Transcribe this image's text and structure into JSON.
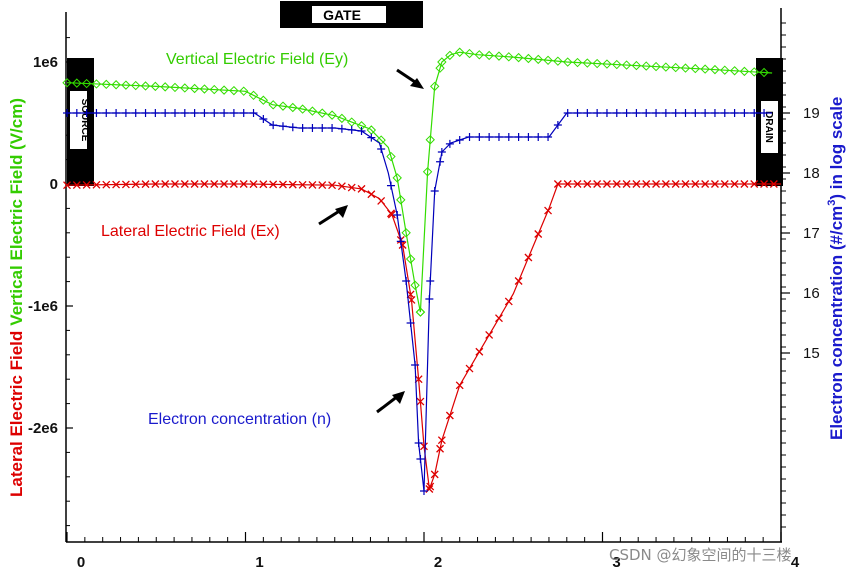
{
  "chart_data": {
    "type": "line",
    "x_ticks": [
      "0",
      "1",
      "2",
      "3",
      "4"
    ],
    "x_values": [
      0,
      1,
      2,
      3,
      4
    ],
    "xlim": [
      0,
      4
    ],
    "left_axis": {
      "ylabel_red": "Lateral Electric Field",
      "ylabel_green": "Vertical Electric Field (V/cm)",
      "tick_labels": [
        "1e6",
        "0",
        "-1e6",
        "-2e6"
      ],
      "tick_values": [
        1000000,
        0,
        -1000000,
        -2000000
      ],
      "ylim": [
        -2800000,
        1400000
      ]
    },
    "right_axis": {
      "ylabel_main": "Electron concentration (#/cm",
      "ylabel_sup": "3",
      "ylabel_tail": ") in log scale",
      "tick_labels": [
        "19",
        "18",
        "17",
        "16",
        "15"
      ],
      "tick_values": [
        19,
        18,
        17,
        16,
        15
      ]
    },
    "boxes": {
      "gate": "GATE",
      "source": "SOURCE",
      "drain": "DRAIN"
    },
    "annotations": {
      "ey": "Vertical Electric Field (Ey)",
      "ex": "Lateral Electric Field (Ex)",
      "n": "Electron concentration (n)"
    },
    "series": [
      {
        "name": "Vertical Electric Field (Ey)",
        "color": "#33dd00",
        "marker": "diamond",
        "x": [
          0,
          0.5,
          1.0,
          1.15,
          1.3,
          1.5,
          1.7,
          1.8,
          1.85,
          1.9,
          1.95,
          1.98,
          2.02,
          2.06,
          2.1,
          2.15,
          2.2,
          2.3,
          2.5,
          2.8,
          3.2,
          3.6,
          3.95
        ],
        "y": [
          830000,
          800000,
          760000,
          650000,
          620000,
          560000,
          450000,
          300000,
          50000,
          -400000,
          -830000,
          -1050000,
          100000,
          800000,
          1000000,
          1060000,
          1080000,
          1060000,
          1040000,
          1000000,
          970000,
          940000,
          910000
        ]
      },
      {
        "name": "Lateral Electric Field (Ex)",
        "color": "#dd0000",
        "marker": "x",
        "x": [
          0,
          0.5,
          1.0,
          1.5,
          1.65,
          1.75,
          1.82,
          1.88,
          1.93,
          1.97,
          2.0,
          2.03,
          2.06,
          2.1,
          2.2,
          2.3,
          2.4,
          2.5,
          2.6,
          2.7,
          2.75,
          3.0,
          3.5,
          4.0
        ],
        "y": [
          -10000,
          0,
          0,
          -10000,
          -40000,
          -120000,
          -250000,
          -500000,
          -950000,
          -1600000,
          -2150000,
          -2500000,
          -2380000,
          -2100000,
          -1650000,
          -1400000,
          -1150000,
          -900000,
          -550000,
          -200000,
          0,
          0,
          0,
          0
        ]
      },
      {
        "name": "Electron concentration (n)",
        "color": "#0000bb",
        "marker": "plus",
        "x": [
          0,
          0.5,
          1.05,
          1.15,
          1.3,
          1.5,
          1.65,
          1.75,
          1.8,
          1.85,
          1.9,
          1.95,
          1.97,
          2.0,
          2.03,
          2.06,
          2.1,
          2.15,
          2.25,
          2.5,
          2.7,
          2.8,
          3.2,
          3.6,
          3.95
        ],
        "y": [
          19.0,
          19.0,
          19.0,
          18.8,
          18.75,
          18.75,
          18.7,
          18.5,
          18.0,
          17.3,
          16.2,
          14.8,
          13.5,
          12.7,
          15.9,
          17.7,
          18.35,
          18.5,
          18.6,
          18.6,
          18.6,
          19.0,
          19.0,
          19.0,
          19.0
        ]
      }
    ],
    "watermark": "CSDN @幻象空间的十三楼"
  }
}
